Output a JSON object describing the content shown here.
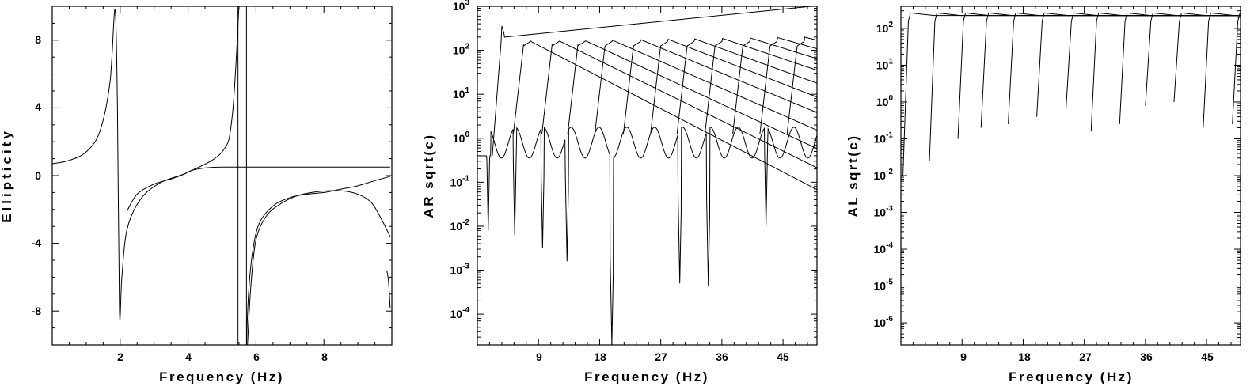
{
  "charts": [
    {
      "id": "ellipticity",
      "ylabel": "Ellipticity",
      "xlabel": "Frequency (Hz)",
      "xticks": [
        "2",
        "4",
        "6",
        "8"
      ],
      "yticks": [
        "8",
        "4",
        "0",
        "-4",
        "-8"
      ]
    },
    {
      "id": "ar",
      "ylabel": "AR sqrt(c)",
      "xlabel": "Frequency (Hz)",
      "xticks": [
        "9",
        "18",
        "27",
        "36",
        "45"
      ],
      "yticks": [
        "10",
        "10",
        "10",
        "10",
        "10",
        "10",
        "10",
        "10"
      ],
      "yexps": [
        "3",
        "2",
        "1",
        "0",
        "-1",
        "-2",
        "-3",
        "-4"
      ]
    },
    {
      "id": "al",
      "ylabel": "AL sqrt(c)",
      "xlabel": "Frequency (Hz)",
      "xticks": [
        "9",
        "18",
        "27",
        "36",
        "45"
      ],
      "yticks": [
        "10",
        "10",
        "10",
        "10",
        "10",
        "10",
        "10",
        "10",
        "10"
      ],
      "yexps": [
        "2",
        "1",
        "0",
        "-1",
        "-2",
        "-3",
        "-4",
        "-5",
        "-6"
      ]
    }
  ],
  "chart_data": [
    {
      "type": "line",
      "xlabel": "Frequency (Hz)",
      "ylabel": "Ellipticity",
      "xlim": [
        0,
        10
      ],
      "ylim": [
        -10,
        10
      ],
      "series": [
        {
          "x": [
            0,
            0.5,
            1.0,
            1.4,
            1.7,
            1.85,
            1.92,
            1.98,
            2.05,
            2.2,
            2.6,
            3.2,
            4.0,
            5.0,
            5.3,
            5.5
          ],
          "y": [
            0.7,
            0.9,
            1.4,
            2.6,
            5.5,
            9.8,
            4.0,
            -8.0,
            -6.0,
            -3.2,
            -1.4,
            -0.4,
            0.2,
            1.4,
            3.5,
            10
          ]
        },
        {
          "x": [
            2.2,
            2.5,
            3.0,
            3.5,
            3.9,
            4.1,
            4.5,
            5.0,
            6.0,
            7.0,
            8.0,
            9.0,
            9.95
          ],
          "y": [
            -2.1,
            -1.1,
            -0.5,
            -0.2,
            0.1,
            0.3,
            0.45,
            0.5,
            0.5,
            0.5,
            0.5,
            0.5,
            0.5
          ]
        },
        {
          "x": [
            5.72,
            5.78,
            5.9,
            6.1,
            6.5,
            7.0,
            7.5,
            8.0,
            8.5,
            9.0,
            9.5,
            9.95
          ],
          "y": [
            -10,
            -7.0,
            -4.5,
            -2.8,
            -1.8,
            -1.3,
            -1.1,
            -1.0,
            -0.8,
            -0.6,
            -0.3,
            -0.05
          ]
        },
        {
          "x": [
            5.75,
            5.85,
            6.0,
            6.3,
            6.7,
            7.2,
            7.8,
            8.5,
            9.0,
            9.4,
            9.7,
            9.95
          ],
          "y": [
            -10,
            -6.5,
            -3.8,
            -2.4,
            -1.7,
            -1.2,
            -0.95,
            -0.9,
            -1.1,
            -1.6,
            -2.6,
            -3.6
          ]
        },
        {
          "x": [
            9.85,
            9.9,
            9.95
          ],
          "y": [
            -5.6,
            -6.2,
            -7.8
          ]
        }
      ]
    },
    {
      "type": "line",
      "xlabel": "Frequency (Hz)",
      "ylabel": "AR sqrt(c)",
      "xlim": [
        0,
        50
      ],
      "ylim": [
        "1e-4.7",
        "1e3"
      ],
      "yscale": "log",
      "series_count": 12,
      "example_peaks_x": [
        1.3,
        5.4,
        9.5,
        13.3,
        17.6,
        21.6,
        25.6,
        29.6,
        33.6,
        37.6,
        41.6,
        45.6,
        49.6
      ]
    },
    {
      "type": "line",
      "xlabel": "Frequency (Hz)",
      "ylabel": "AL sqrt(c)",
      "xlim": [
        0,
        50
      ],
      "ylim": [
        "1e-6.6",
        "1e2.6"
      ],
      "yscale": "log",
      "series_count": 13,
      "branch_start_x": [
        0.3,
        4.2,
        8.4,
        11.8,
        15.8,
        20.0,
        24.3,
        28.0,
        32.2,
        36.0,
        40.2,
        44.5,
        48.8
      ]
    }
  ]
}
